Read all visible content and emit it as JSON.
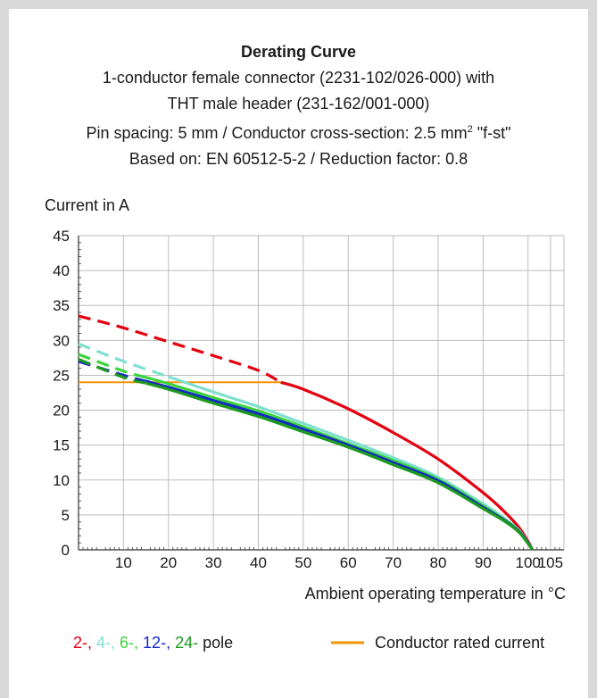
{
  "title": {
    "main": "Derating Curve",
    "line1": "1-conductor female connector (2231-102/026-000) with",
    "line2": "THT male header (231-162/001-000)",
    "line3_pre": "Pin spacing: 5 mm / Conductor cross-section: 2.5 mm",
    "line3_sup": "2",
    "line3_post": " \"f-st\"",
    "line4": "Based on: EN 60512-5-2 / Reduction factor: 0.8"
  },
  "chart_data": {
    "type": "line",
    "ylabel": "Current in A",
    "xlabel": "Ambient operating temperature in °C",
    "xlim": [
      0,
      108
    ],
    "ylim": [
      0,
      45
    ],
    "x_ticks": [
      10,
      20,
      30,
      40,
      50,
      60,
      70,
      80,
      90,
      100,
      105
    ],
    "y_ticks": [
      0,
      5,
      10,
      15,
      20,
      25,
      30,
      35,
      40,
      45
    ],
    "grid": true,
    "series": [
      {
        "name": "2-",
        "color": "#e3000f",
        "dashed_until_x": 45,
        "points": [
          [
            0,
            33.5
          ],
          [
            10,
            31.8
          ],
          [
            20,
            29.8
          ],
          [
            30,
            27.8
          ],
          [
            40,
            25.7
          ],
          [
            45,
            24
          ],
          [
            50,
            23
          ],
          [
            60,
            20.2
          ],
          [
            70,
            16.8
          ],
          [
            80,
            13
          ],
          [
            90,
            8.2
          ],
          [
            95,
            5.3
          ],
          [
            98,
            3.2
          ],
          [
            100,
            1.2
          ],
          [
            101,
            0
          ]
        ]
      },
      {
        "name": "4-",
        "color": "#7fe0d0",
        "dashed_until_x": 20,
        "points": [
          [
            0,
            29.5
          ],
          [
            10,
            27
          ],
          [
            20,
            24.8
          ],
          [
            30,
            22.6
          ],
          [
            40,
            20.5
          ],
          [
            50,
            18.1
          ],
          [
            60,
            15.7
          ],
          [
            70,
            13.2
          ],
          [
            80,
            10.4
          ],
          [
            90,
            6.6
          ],
          [
            95,
            4.4
          ],
          [
            98,
            2.8
          ],
          [
            100,
            1
          ],
          [
            101,
            0
          ]
        ]
      },
      {
        "name": "6-",
        "color": "#3ad43a",
        "dashed_until_x": 15,
        "points": [
          [
            0,
            28
          ],
          [
            10,
            25.6
          ],
          [
            20,
            23.8
          ],
          [
            30,
            21.8
          ],
          [
            40,
            19.9
          ],
          [
            50,
            17.6
          ],
          [
            60,
            15.2
          ],
          [
            70,
            12.8
          ],
          [
            80,
            10.1
          ],
          [
            90,
            6.3
          ],
          [
            95,
            4.2
          ],
          [
            98,
            2.7
          ],
          [
            100,
            1
          ],
          [
            101,
            0
          ]
        ]
      },
      {
        "name": "12-",
        "color": "#1428c8",
        "dashed_until_x": 15,
        "points": [
          [
            0,
            27
          ],
          [
            10,
            25
          ],
          [
            20,
            23.3
          ],
          [
            30,
            21.4
          ],
          [
            40,
            19.5
          ],
          [
            50,
            17.3
          ],
          [
            60,
            15
          ],
          [
            70,
            12.5
          ],
          [
            80,
            9.9
          ],
          [
            90,
            6.1
          ],
          [
            95,
            4.1
          ],
          [
            98,
            2.6
          ],
          [
            100,
            1
          ],
          [
            101,
            0
          ]
        ]
      },
      {
        "name": "24-",
        "color": "#1e9a1e",
        "dashed_until_x": 15,
        "points": [
          [
            0,
            27.3
          ],
          [
            10,
            24.7
          ],
          [
            20,
            23
          ],
          [
            30,
            21
          ],
          [
            40,
            19.1
          ],
          [
            50,
            16.9
          ],
          [
            60,
            14.7
          ],
          [
            70,
            12.2
          ],
          [
            80,
            9.6
          ],
          [
            90,
            5.9
          ],
          [
            95,
            4
          ],
          [
            98,
            2.5
          ],
          [
            100,
            0.9
          ],
          [
            101,
            0
          ]
        ]
      }
    ],
    "rated_current": {
      "name": "Conductor rated current",
      "value": 24,
      "x_end": 45,
      "color": "#f29400"
    },
    "legend": {
      "placement": "bottom",
      "pole_items": [
        {
          "label": "2-,",
          "color": "#e3000f"
        },
        {
          "label": "4-,",
          "color": "#7fe0d0"
        },
        {
          "label": "6-,",
          "color": "#3ad43a"
        },
        {
          "label": "12-,",
          "color": "#1428c8"
        },
        {
          "label": "24-",
          "color": "#1e9a1e"
        },
        {
          "label": "pole",
          "color": "#1a1a1a"
        }
      ],
      "rated_label": "Conductor rated current"
    }
  }
}
